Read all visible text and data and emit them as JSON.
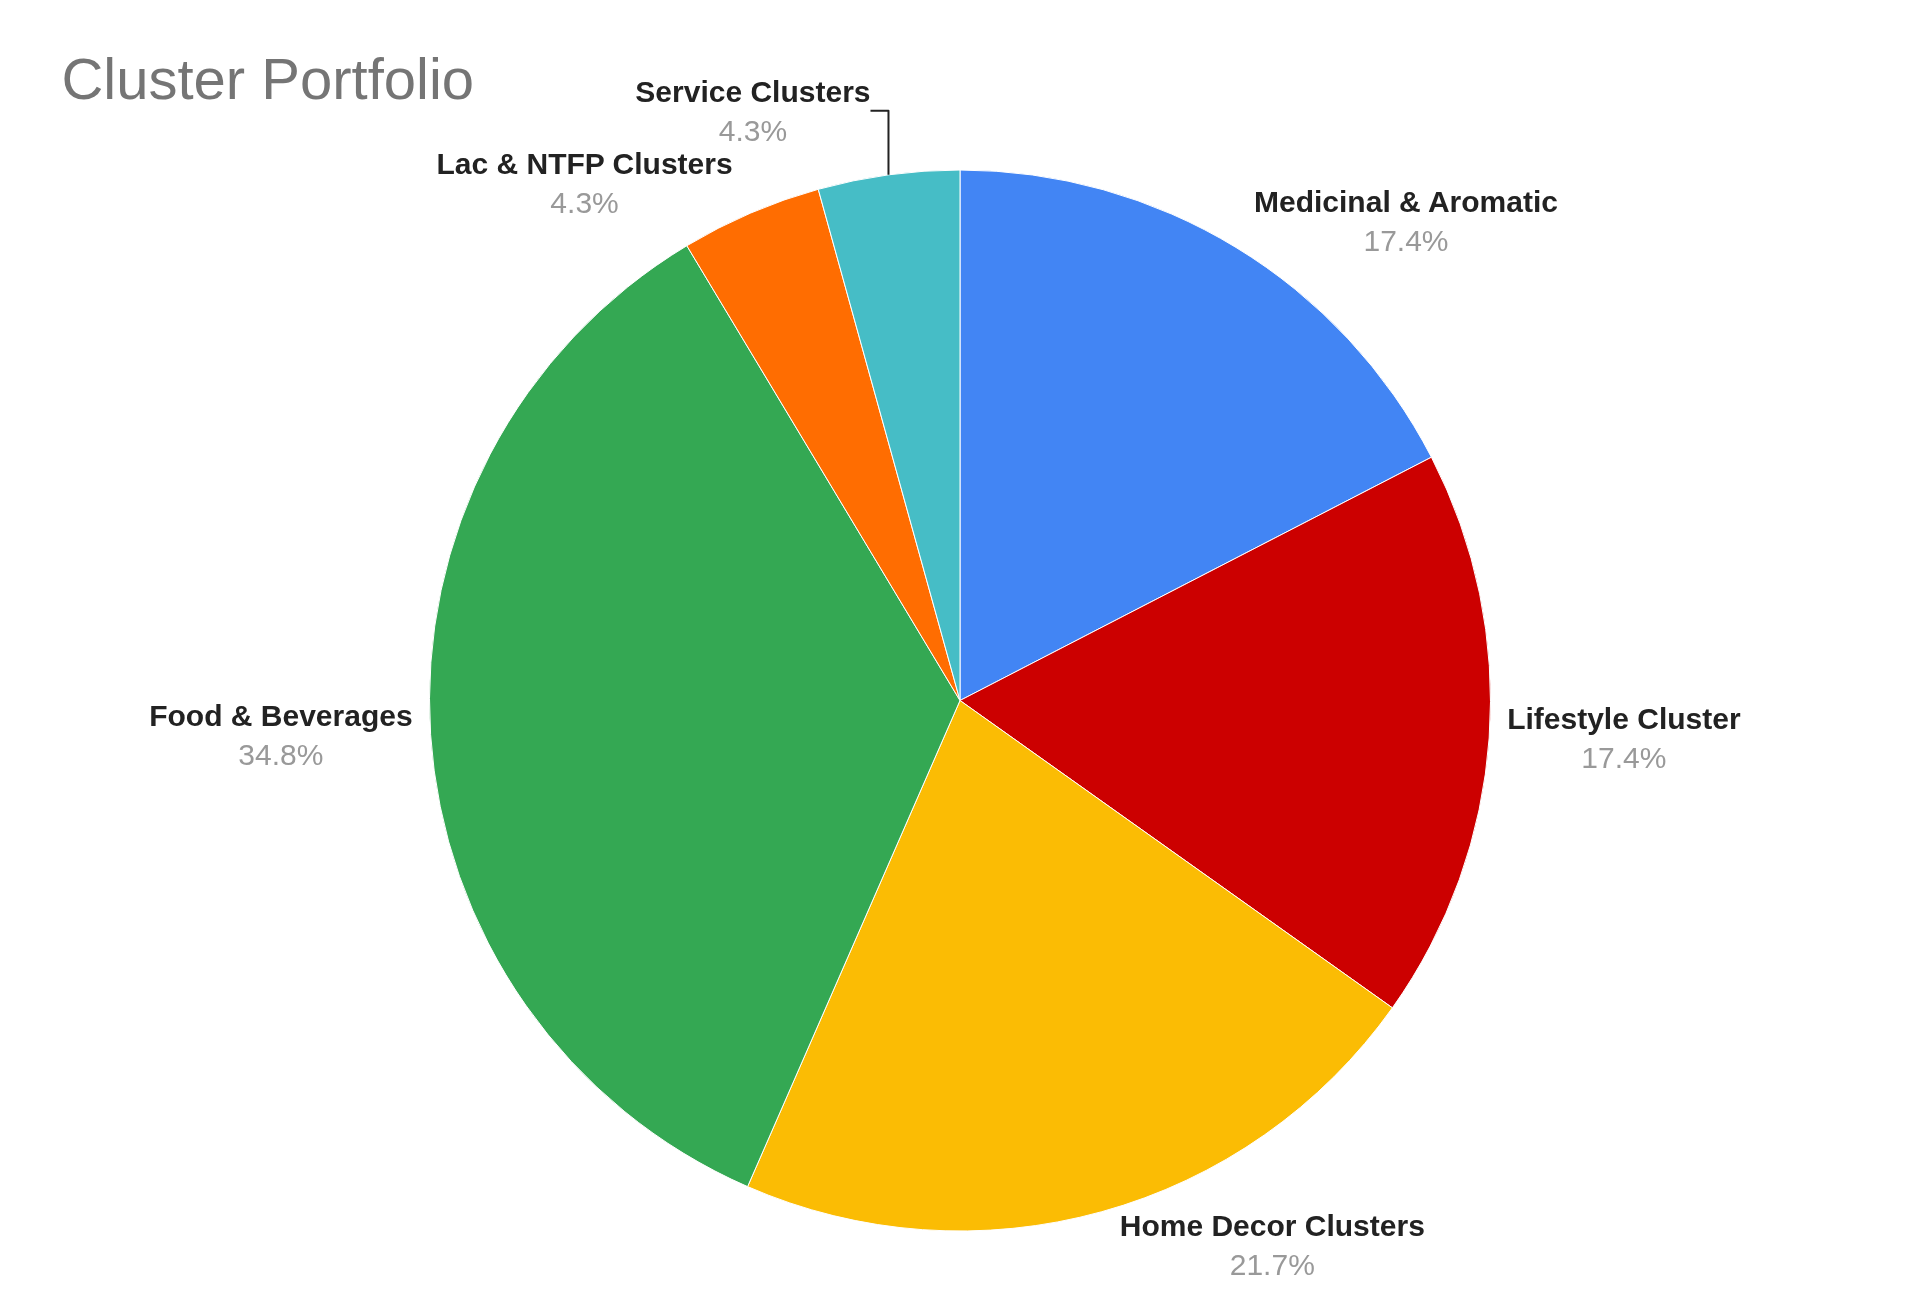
{
  "chart_data": {
    "type": "pie",
    "title": "Cluster Portfolio",
    "categories": [
      "Medicinal & Aromatic",
      "Lifestyle Cluster",
      "Home Decor Clusters",
      "Food & Beverages",
      "Lac & NTFP Clusters",
      "Service Clusters"
    ],
    "values": [
      17.4,
      17.4,
      21.7,
      34.8,
      4.3,
      4.3
    ],
    "colors": [
      "#4285f4",
      "#cc0000",
      "#fbbc04",
      "#34a853",
      "#ff6d01",
      "#46bdc6"
    ],
    "value_labels": [
      "17.4%",
      "17.4%",
      "21.7%",
      "34.8%",
      "4.3%",
      "4.3%"
    ],
    "legend": false
  }
}
